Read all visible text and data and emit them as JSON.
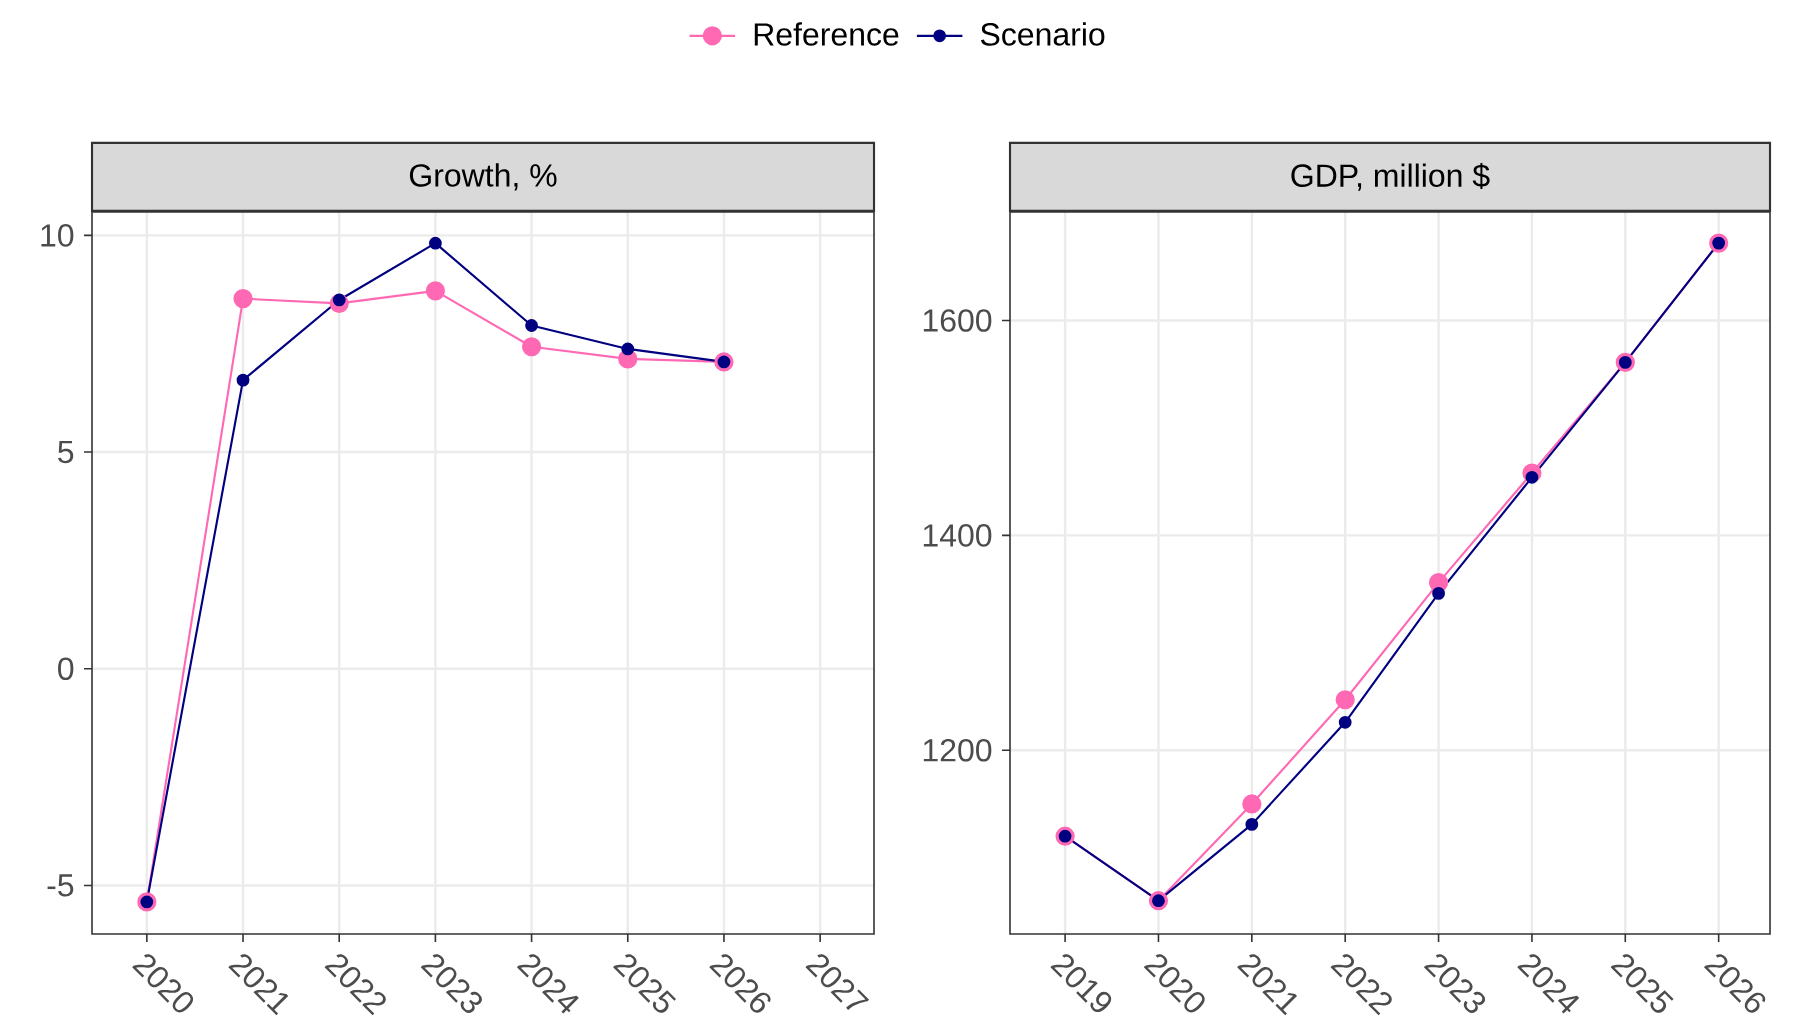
{
  "chart_data": [
    {
      "type": "line",
      "title": "Growth, %",
      "x": [
        2020,
        2021,
        2022,
        2023,
        2024,
        2025,
        2026
      ],
      "series": [
        {
          "name": "Reference",
          "color": "#ff69b4",
          "values": [
            -5.38,
            8.54,
            8.43,
            8.72,
            7.43,
            7.15,
            7.08
          ]
        },
        {
          "name": "Scenario",
          "color": "#000080",
          "values": [
            -5.38,
            6.66,
            8.51,
            9.82,
            7.92,
            7.38,
            7.08
          ]
        }
      ],
      "xlim": [
        2019.43,
        2027.56
      ],
      "ylim": [
        -6.12,
        10.54
      ],
      "xticks": [
        2020,
        2021,
        2022,
        2023,
        2024,
        2025,
        2026,
        2027
      ],
      "yticks": [
        -5,
        0,
        5,
        10
      ],
      "grid": true,
      "legend": "top",
      "marker": "circle",
      "line_style": "solid"
    },
    {
      "type": "line",
      "title": "GDP, million $",
      "x": [
        2019,
        2020,
        2021,
        2022,
        2023,
        2024,
        2025,
        2026
      ],
      "series": [
        {
          "color": "#ff69b4",
          "values": [
            1120,
            1060,
            1150,
            1247,
            1356,
            1458,
            1561,
            1672
          ]
        },
        {
          "color": "#000080",
          "values": [
            1120,
            1060,
            1131,
            1226,
            1346,
            1454,
            1561,
            1672
          ]
        }
      ],
      "xlim": [
        2018.41,
        2026.55
      ],
      "ylim": [
        1029,
        1701
      ],
      "xticks": [
        2019,
        2020,
        2021,
        2022,
        2023,
        2024,
        2025,
        2026
      ],
      "yticks": [
        1200,
        1400,
        1600
      ],
      "grid": true,
      "marker": "circle",
      "line_style": "solid"
    }
  ]
}
